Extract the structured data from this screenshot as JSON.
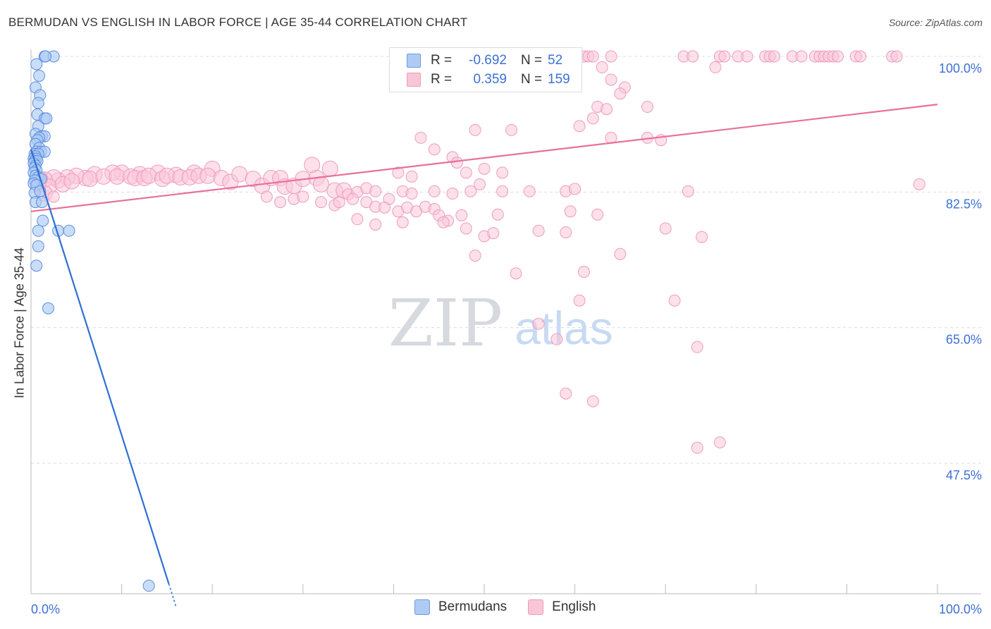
{
  "title": "BERMUDAN VS ENGLISH IN LABOR FORCE | AGE 35-44 CORRELATION CHART",
  "source": "Source: ZipAtlas.com",
  "watermark": {
    "zip": "ZIP",
    "atlas": "atlas"
  },
  "legend_top": {
    "r_label": "R =",
    "n_label": "N =",
    "rows": [
      {
        "name": "Bermudans",
        "r": "-0.692",
        "n": "52",
        "color": "#3d6fd6"
      },
      {
        "name": "English",
        "r": "0.359",
        "n": "159",
        "color": "#3d6fd6"
      }
    ]
  },
  "legend_bottom": [
    {
      "label": "Bermudans",
      "fill": "#aecbf5",
      "stroke": "#6c9be0"
    },
    {
      "label": "English",
      "fill": "#f9c6d8",
      "stroke": "#ee9bb8"
    }
  ],
  "colors": {
    "blue_fill": "#aecbf5",
    "blue_stroke": "#5b8ee0",
    "blue_line": "#2f6fd3",
    "pink_fill": "#f9c6d8",
    "pink_stroke": "#ef9cbb",
    "pink_line": "#e8709a",
    "tick_text": "#3d6fd6"
  },
  "chart_data": {
    "type": "scatter",
    "title": "BERMUDAN VS ENGLISH IN LABOR FORCE | AGE 35-44 CORRELATION CHART",
    "xlabel": "",
    "ylabel": "In Labor Force | Age 35-44",
    "xlim": [
      0,
      100
    ],
    "ylim": [
      30,
      101.5
    ],
    "x_tick_labels": [
      "0.0%",
      "100.0%"
    ],
    "y_ticks": [
      {
        "value": 47.5,
        "label": "47.5%"
      },
      {
        "value": 65.0,
        "label": "65.0%"
      },
      {
        "value": 82.5,
        "label": "82.5%"
      },
      {
        "value": 100.0,
        "label": "100.0%"
      }
    ],
    "series": [
      {
        "name": "Bermudans",
        "r": -0.692,
        "n": 52,
        "trend": {
          "x0": 0,
          "y0": 88.0,
          "x1": 16,
          "y1": 29.0
        },
        "points": [
          [
            1.5,
            100
          ],
          [
            2.5,
            100
          ],
          [
            1.6,
            100
          ],
          [
            0.6,
            99
          ],
          [
            0.9,
            97.5
          ],
          [
            0.5,
            96
          ],
          [
            1,
            95
          ],
          [
            0.8,
            94
          ],
          [
            0.7,
            92.5
          ],
          [
            1.5,
            92
          ],
          [
            1.7,
            92
          ],
          [
            0.8,
            91
          ],
          [
            0.5,
            90
          ],
          [
            1.2,
            89.7
          ],
          [
            1.5,
            89.7
          ],
          [
            0.9,
            89.5
          ],
          [
            0.7,
            89.2
          ],
          [
            0.5,
            88.7
          ],
          [
            0.9,
            88.2
          ],
          [
            0.6,
            87.7
          ],
          [
            1.1,
            87.7
          ],
          [
            1.5,
            87.7
          ],
          [
            0.4,
            87.4
          ],
          [
            0.8,
            87.4
          ],
          [
            0.5,
            87.1
          ],
          [
            0.3,
            86.8
          ],
          [
            0.6,
            86.8
          ],
          [
            0.4,
            86.5
          ],
          [
            0.7,
            86.5
          ],
          [
            0.3,
            86.2
          ],
          [
            0.5,
            85.9
          ],
          [
            0.4,
            85.6
          ],
          [
            0.6,
            85.3
          ],
          [
            0.3,
            85.0
          ],
          [
            0.5,
            84.6
          ],
          [
            0.8,
            84.4
          ],
          [
            1.1,
            84.2
          ],
          [
            0.4,
            84.0
          ],
          [
            0.3,
            83.6
          ],
          [
            0.6,
            83.4
          ],
          [
            0.4,
            82.4
          ],
          [
            1.0,
            82.6
          ],
          [
            0.5,
            81.2
          ],
          [
            1.2,
            81.2
          ],
          [
            1.3,
            78.8
          ],
          [
            0.8,
            77.5
          ],
          [
            3,
            77.5
          ],
          [
            4.2,
            77.5
          ],
          [
            0.8,
            75.5
          ],
          [
            0.6,
            73
          ],
          [
            1.9,
            67.5
          ],
          [
            13,
            31.7
          ]
        ]
      },
      {
        "name": "English",
        "r": 0.359,
        "n": 159,
        "trend": {
          "x0": 0,
          "y0": 80.0,
          "x1": 100,
          "y1": 93.8
        },
        "points": [
          [
            60,
            100
          ],
          [
            61,
            100
          ],
          [
            61.5,
            100
          ],
          [
            62,
            100
          ],
          [
            64,
            100
          ],
          [
            72,
            100
          ],
          [
            73,
            100
          ],
          [
            76,
            100
          ],
          [
            76.5,
            100
          ],
          [
            78,
            100
          ],
          [
            79,
            100
          ],
          [
            81,
            100
          ],
          [
            81.5,
            100
          ],
          [
            82,
            100
          ],
          [
            84,
            100
          ],
          [
            85,
            100
          ],
          [
            86.5,
            100
          ],
          [
            87,
            100
          ],
          [
            87.5,
            100
          ],
          [
            88,
            100
          ],
          [
            88.5,
            100
          ],
          [
            89,
            100
          ],
          [
            91,
            100
          ],
          [
            91.5,
            100
          ],
          [
            95,
            100
          ],
          [
            95.5,
            100
          ],
          [
            75.5,
            98.6
          ],
          [
            60,
            98.2
          ],
          [
            63,
            98.6
          ],
          [
            64,
            97
          ],
          [
            65.5,
            96
          ],
          [
            65,
            95.2
          ],
          [
            62.5,
            93.5
          ],
          [
            63.5,
            93.2
          ],
          [
            68,
            93.5
          ],
          [
            60.5,
            91
          ],
          [
            62,
            92
          ],
          [
            64,
            89.5
          ],
          [
            68,
            89.5
          ],
          [
            69.5,
            89.2
          ],
          [
            49,
            90.5
          ],
          [
            53,
            90.5
          ],
          [
            43,
            89.5
          ],
          [
            44.5,
            88
          ],
          [
            46.5,
            87
          ],
          [
            47,
            86.3
          ],
          [
            50,
            85.5
          ],
          [
            52,
            85
          ],
          [
            48,
            85
          ],
          [
            40.5,
            85
          ],
          [
            42,
            84.5
          ],
          [
            31,
            86
          ],
          [
            33,
            85.5
          ],
          [
            20,
            85.5
          ],
          [
            18,
            85
          ],
          [
            16,
            84.7
          ],
          [
            14,
            85
          ],
          [
            12,
            84.8
          ],
          [
            10,
            85
          ],
          [
            9,
            85
          ],
          [
            7,
            84.8
          ],
          [
            6,
            84.3
          ],
          [
            5,
            84.6
          ],
          [
            4,
            84.4
          ],
          [
            3,
            84.0
          ],
          [
            2.5,
            84.4
          ],
          [
            1.5,
            84.1
          ],
          [
            1,
            84.2
          ],
          [
            0.8,
            83.5
          ],
          [
            2,
            83.2
          ],
          [
            3.5,
            83.5
          ],
          [
            4.5,
            83.9
          ],
          [
            6.5,
            84.2
          ],
          [
            8,
            84.5
          ],
          [
            9.5,
            84.5
          ],
          [
            11,
            84.5
          ],
          [
            11.5,
            84.3
          ],
          [
            12.5,
            84.3
          ],
          [
            13,
            84.6
          ],
          [
            14.5,
            84.2
          ],
          [
            15,
            84.6
          ],
          [
            16.5,
            84.4
          ],
          [
            17.5,
            84.4
          ],
          [
            18.5,
            84.6
          ],
          [
            19.5,
            84.6
          ],
          [
            21,
            84.3
          ],
          [
            22,
            83.8
          ],
          [
            23,
            84.8
          ],
          [
            24.5,
            84.2
          ],
          [
            25.5,
            83.3
          ],
          [
            26.5,
            84.3
          ],
          [
            27.5,
            84.3
          ],
          [
            28,
            83.2
          ],
          [
            29,
            83.3
          ],
          [
            30,
            84.2
          ],
          [
            31.5,
            84.3
          ],
          [
            32,
            83.5
          ],
          [
            33.5,
            82.7
          ],
          [
            34.5,
            82.7
          ],
          [
            35,
            82.2
          ],
          [
            36,
            82.5
          ],
          [
            37,
            83
          ],
          [
            38,
            82.6
          ],
          [
            39.5,
            81.6
          ],
          [
            41,
            82.6
          ],
          [
            42,
            82.3
          ],
          [
            44.5,
            82.6
          ],
          [
            46.5,
            82.3
          ],
          [
            48.5,
            82.6
          ],
          [
            49.5,
            83.5
          ],
          [
            52,
            82.6
          ],
          [
            55,
            82.6
          ],
          [
            59,
            82.6
          ],
          [
            60,
            82.9
          ],
          [
            72.5,
            82.6
          ],
          [
            1.5,
            82.3
          ],
          [
            2.5,
            81.9
          ],
          [
            26,
            81.9
          ],
          [
            27.5,
            81.2
          ],
          [
            29,
            81.6
          ],
          [
            30,
            81.9
          ],
          [
            32,
            81.2
          ],
          [
            33.5,
            80.8
          ],
          [
            34,
            81.2
          ],
          [
            35.5,
            81.6
          ],
          [
            37,
            81.2
          ],
          [
            38,
            80.6
          ],
          [
            39,
            80.5
          ],
          [
            40.5,
            80.0
          ],
          [
            41.5,
            80.5
          ],
          [
            42.5,
            80.0
          ],
          [
            43.5,
            80.6
          ],
          [
            44.5,
            80.3
          ],
          [
            45,
            79.5
          ],
          [
            46,
            78.8
          ],
          [
            47.5,
            79.5
          ],
          [
            51.5,
            79.6
          ],
          [
            59.5,
            80.0
          ],
          [
            36,
            79
          ],
          [
            38,
            78.3
          ],
          [
            41,
            78.6
          ],
          [
            45.5,
            78.6
          ],
          [
            48,
            77.8
          ],
          [
            50,
            76.8
          ],
          [
            51,
            77.2
          ],
          [
            56,
            77.5
          ],
          [
            59,
            77.3
          ],
          [
            62.5,
            79.6
          ],
          [
            70,
            77.8
          ],
          [
            74,
            76.7
          ],
          [
            49,
            74.3
          ],
          [
            65,
            74.5
          ],
          [
            61,
            72.2
          ],
          [
            53.5,
            72.0
          ],
          [
            60.5,
            68.5
          ],
          [
            71,
            68.5
          ],
          [
            56,
            65.5
          ],
          [
            58,
            63.5
          ],
          [
            98,
            83.5
          ],
          [
            73.5,
            62.5
          ],
          [
            59,
            56.5
          ],
          [
            62,
            55.5
          ],
          [
            73.5,
            49.5
          ],
          [
            76,
            50.2
          ]
        ]
      }
    ]
  }
}
